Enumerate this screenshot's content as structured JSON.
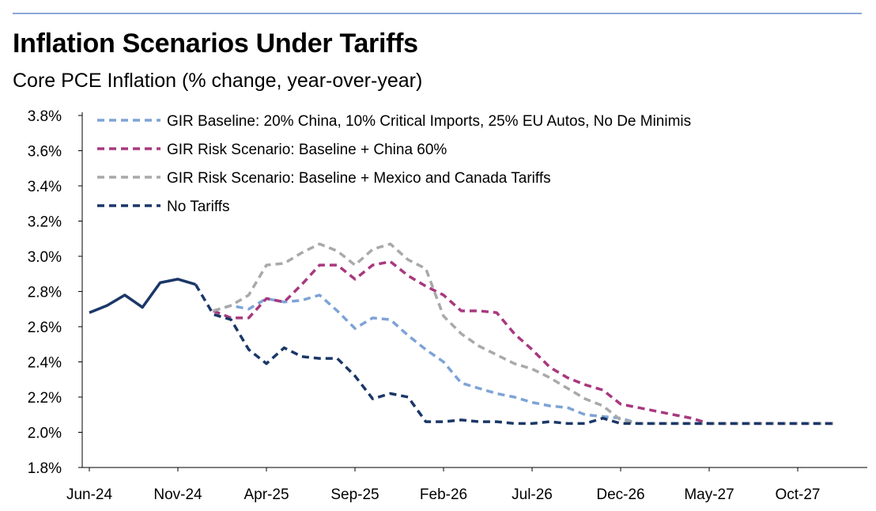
{
  "chart_data": {
    "type": "line",
    "title": "Inflation Scenarios Under Tariffs",
    "subtitle": "Core PCE Inflation (% change, year-over-year)",
    "xlabel": "",
    "ylabel": "",
    "ylim": [
      1.8,
      3.8
    ],
    "y_ticks": [
      1.8,
      2.0,
      2.2,
      2.4,
      2.6,
      2.8,
      3.0,
      3.2,
      3.4,
      3.6,
      3.8
    ],
    "y_tick_format": "percent_1dp",
    "x_start": "Jun-24",
    "x_labels": [
      "Jun-24",
      "Nov-24",
      "Apr-25",
      "Sep-25",
      "Feb-26",
      "Jul-26",
      "Dec-26",
      "May-27",
      "Oct-27"
    ],
    "x_label_months": [
      "2024-06",
      "2024-11",
      "2025-04",
      "2025-09",
      "2026-02",
      "2026-07",
      "2026-12",
      "2027-05",
      "2027-10"
    ],
    "legend_position": "top-left",
    "grid": false,
    "historical": {
      "x": [
        "2024-06",
        "2024-07",
        "2024-08",
        "2024-09",
        "2024-10",
        "2024-11",
        "2024-12"
      ],
      "values": [
        2.68,
        2.72,
        2.78,
        2.71,
        2.85,
        2.87,
        2.84
      ],
      "color": "#1b3768"
    },
    "series": [
      {
        "name": "GIR Baseline: 20% China, 10% Critical Imports, 25% EU Autos, No De Minimis",
        "color": "#7ea3d6",
        "x": [
          "2025-01",
          "2025-02",
          "2025-03",
          "2025-04",
          "2025-05",
          "2025-06",
          "2025-07",
          "2025-08",
          "2025-09",
          "2025-10",
          "2025-11",
          "2025-12",
          "2026-01",
          "2026-02",
          "2026-03",
          "2026-04",
          "2026-05",
          "2026-06",
          "2026-07",
          "2026-08",
          "2026-09",
          "2026-10",
          "2026-11",
          "2026-12",
          "2027-01",
          "2027-02",
          "2027-03",
          "2027-04",
          "2027-05",
          "2027-06",
          "2027-07",
          "2027-08",
          "2027-09",
          "2027-10",
          "2027-11",
          "2027-12"
        ],
        "values": [
          2.69,
          2.72,
          2.7,
          2.76,
          2.74,
          2.75,
          2.78,
          2.69,
          2.59,
          2.65,
          2.64,
          2.55,
          2.47,
          2.4,
          2.28,
          2.25,
          2.22,
          2.2,
          2.17,
          2.15,
          2.14,
          2.1,
          2.09,
          2.08,
          2.05,
          2.05,
          2.05,
          2.05,
          2.05,
          2.05,
          2.05,
          2.05,
          2.05,
          2.05,
          2.05,
          2.05
        ]
      },
      {
        "name": "GIR Risk Scenario: Baseline + China 60%",
        "color": "#a8387f",
        "x": [
          "2025-01",
          "2025-02",
          "2025-03",
          "2025-04",
          "2025-05",
          "2025-06",
          "2025-07",
          "2025-08",
          "2025-09",
          "2025-10",
          "2025-11",
          "2025-12",
          "2026-01",
          "2026-02",
          "2026-03",
          "2026-04",
          "2026-05",
          "2026-06",
          "2026-07",
          "2026-08",
          "2026-09",
          "2026-10",
          "2026-11",
          "2026-12",
          "2027-01",
          "2027-02",
          "2027-03",
          "2027-04",
          "2027-05",
          "2027-06",
          "2027-07",
          "2027-08",
          "2027-09",
          "2027-10",
          "2027-11",
          "2027-12"
        ],
        "values": [
          2.69,
          2.65,
          2.65,
          2.76,
          2.74,
          2.84,
          2.95,
          2.95,
          2.87,
          2.95,
          2.97,
          2.89,
          2.83,
          2.78,
          2.69,
          2.69,
          2.68,
          2.56,
          2.47,
          2.37,
          2.31,
          2.27,
          2.24,
          2.16,
          2.14,
          2.12,
          2.1,
          2.08,
          2.05,
          2.05,
          2.05,
          2.05,
          2.05,
          2.05,
          2.05,
          2.05
        ]
      },
      {
        "name": "GIR Risk Scenario: Baseline + Mexico and Canada Tariffs",
        "color": "#a9a9a9",
        "x": [
          "2025-01",
          "2025-02",
          "2025-03",
          "2025-04",
          "2025-05",
          "2025-06",
          "2025-07",
          "2025-08",
          "2025-09",
          "2025-10",
          "2025-11",
          "2025-12",
          "2026-01",
          "2026-02",
          "2026-03",
          "2026-04",
          "2026-05",
          "2026-06",
          "2026-07",
          "2026-08",
          "2026-09",
          "2026-10",
          "2026-11",
          "2026-12",
          "2027-01",
          "2027-02",
          "2027-03",
          "2027-04",
          "2027-05",
          "2027-06",
          "2027-07",
          "2027-08",
          "2027-09",
          "2027-10",
          "2027-11",
          "2027-12"
        ],
        "values": [
          2.69,
          2.72,
          2.78,
          2.95,
          2.96,
          3.02,
          3.07,
          3.03,
          2.95,
          3.04,
          3.07,
          2.98,
          2.93,
          2.66,
          2.56,
          2.49,
          2.44,
          2.39,
          2.36,
          2.31,
          2.25,
          2.19,
          2.15,
          2.07,
          2.05,
          2.05,
          2.05,
          2.05,
          2.05,
          2.05,
          2.05,
          2.05,
          2.05,
          2.05,
          2.05,
          2.05
        ]
      },
      {
        "name": "No Tariffs",
        "color": "#1b3768",
        "x": [
          "2024-12",
          "2025-01",
          "2025-02",
          "2025-03",
          "2025-04",
          "2025-05",
          "2025-06",
          "2025-07",
          "2025-08",
          "2025-09",
          "2025-10",
          "2025-11",
          "2025-12",
          "2026-01",
          "2026-02",
          "2026-03",
          "2026-04",
          "2026-05",
          "2026-06",
          "2026-07",
          "2026-08",
          "2026-09",
          "2026-10",
          "2026-11",
          "2026-12",
          "2027-01",
          "2027-02",
          "2027-03",
          "2027-04",
          "2027-05",
          "2027-06",
          "2027-07",
          "2027-08",
          "2027-09",
          "2027-10",
          "2027-11",
          "2027-12"
        ],
        "values": [
          2.84,
          2.67,
          2.64,
          2.47,
          2.39,
          2.48,
          2.43,
          2.42,
          2.42,
          2.32,
          2.19,
          2.22,
          2.2,
          2.06,
          2.06,
          2.07,
          2.06,
          2.06,
          2.05,
          2.05,
          2.06,
          2.05,
          2.05,
          2.08,
          2.05,
          2.05,
          2.05,
          2.05,
          2.05,
          2.05,
          2.05,
          2.05,
          2.05,
          2.05,
          2.05,
          2.05,
          2.05
        ]
      }
    ]
  }
}
